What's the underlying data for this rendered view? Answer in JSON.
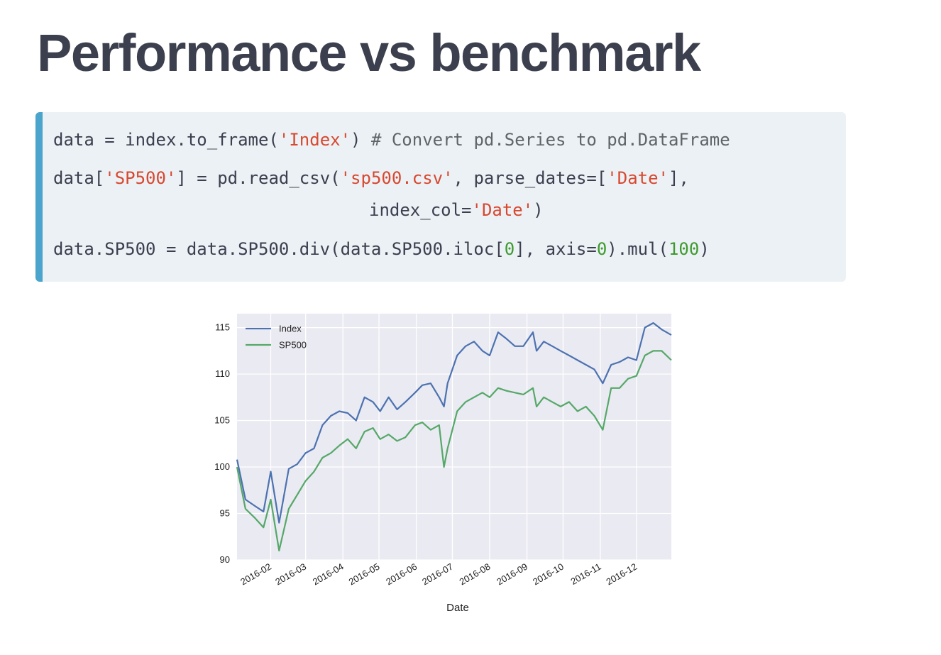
{
  "page": {
    "title": "Performance vs benchmark"
  },
  "code": {
    "line1": {
      "a": "data = index.to_frame(",
      "s1": "'Index'",
      "b": ") ",
      "comment": "# Convert pd.Series to pd.DataFrame"
    },
    "line2": {
      "a": "data[",
      "s1": "'SP500'",
      "b": "] = pd.read_csv(",
      "s2": "'sp500.csv'",
      "c": ", parse_dates=[",
      "s3": "'Date'",
      "d": "],"
    },
    "line3": {
      "a": "index_col=",
      "s1": "'Date'",
      "b": ")"
    },
    "line4": {
      "a": "data.SP500 = data.SP500.div(data.SP500.iloc[",
      "n1": "0",
      "b": "], axis=",
      "n2": "0",
      "c": ").mul(",
      "n3": "100",
      "d": ")"
    }
  },
  "colors": {
    "code_background": "#ebf1f5",
    "code_bar": "#4aa4cb",
    "string": "#d9482f",
    "number": "#3f9a2e",
    "plot_background": "#eaeaf2",
    "index_line": "#4c72b0",
    "sp500_line": "#55a868"
  },
  "chart_data": {
    "type": "line",
    "xlabel": "Date",
    "ylabel": "",
    "ylim": [
      90,
      116.5
    ],
    "xlim": [
      "2016-01-04",
      "2016-12-30"
    ],
    "yticks": [
      90,
      95,
      100,
      105,
      110,
      115
    ],
    "xticks": [
      "2016-02",
      "2016-03",
      "2016-04",
      "2016-05",
      "2016-06",
      "2016-07",
      "2016-08",
      "2016-09",
      "2016-10",
      "2016-11",
      "2016-12"
    ],
    "grid": true,
    "legend_position": "top-left",
    "x": [
      "2016-01-04",
      "2016-01-11",
      "2016-01-19",
      "2016-01-26",
      "2016-02-01",
      "2016-02-08",
      "2016-02-16",
      "2016-02-23",
      "2016-03-01",
      "2016-03-08",
      "2016-03-15",
      "2016-03-22",
      "2016-03-29",
      "2016-04-05",
      "2016-04-12",
      "2016-04-19",
      "2016-04-26",
      "2016-05-02",
      "2016-05-09",
      "2016-05-16",
      "2016-05-23",
      "2016-05-31",
      "2016-06-06",
      "2016-06-13",
      "2016-06-20",
      "2016-06-24",
      "2016-06-27",
      "2016-07-05",
      "2016-07-12",
      "2016-07-19",
      "2016-07-26",
      "2016-08-01",
      "2016-08-08",
      "2016-08-15",
      "2016-08-22",
      "2016-08-29",
      "2016-09-06",
      "2016-09-09",
      "2016-09-15",
      "2016-09-22",
      "2016-09-29",
      "2016-10-06",
      "2016-10-13",
      "2016-10-20",
      "2016-10-27",
      "2016-11-03",
      "2016-11-10",
      "2016-11-17",
      "2016-11-24",
      "2016-12-01",
      "2016-12-08",
      "2016-12-15",
      "2016-12-22",
      "2016-12-30"
    ],
    "series": [
      {
        "name": "Index",
        "values": [
          100.8,
          96.5,
          95.8,
          95.2,
          99.5,
          94.0,
          99.8,
          100.3,
          101.5,
          102.0,
          104.5,
          105.5,
          106.0,
          105.8,
          105.0,
          107.5,
          107.0,
          106.0,
          107.5,
          106.2,
          107.0,
          108.0,
          108.8,
          109.0,
          107.5,
          106.5,
          109.0,
          112.0,
          113.0,
          113.5,
          112.5,
          112.0,
          114.5,
          113.8,
          113.0,
          113.0,
          114.5,
          112.5,
          113.5,
          113.0,
          112.5,
          112.0,
          111.5,
          111.0,
          110.5,
          109.0,
          111.0,
          111.3,
          111.8,
          111.5,
          115.0,
          115.5,
          114.8,
          114.2
        ]
      },
      {
        "name": "SP500",
        "values": [
          100.0,
          95.5,
          94.5,
          93.5,
          96.5,
          91.0,
          95.5,
          97.0,
          98.5,
          99.5,
          101.0,
          101.5,
          102.3,
          103.0,
          102.0,
          103.8,
          104.2,
          103.0,
          103.5,
          102.8,
          103.2,
          104.5,
          104.8,
          104.0,
          104.5,
          100.0,
          102.0,
          106.0,
          107.0,
          107.5,
          108.0,
          107.5,
          108.5,
          108.2,
          108.0,
          107.8,
          108.5,
          106.5,
          107.5,
          107.0,
          106.5,
          107.0,
          106.0,
          106.5,
          105.5,
          104.0,
          108.5,
          108.5,
          109.5,
          109.8,
          112.0,
          112.5,
          112.5,
          111.5
        ]
      }
    ]
  }
}
